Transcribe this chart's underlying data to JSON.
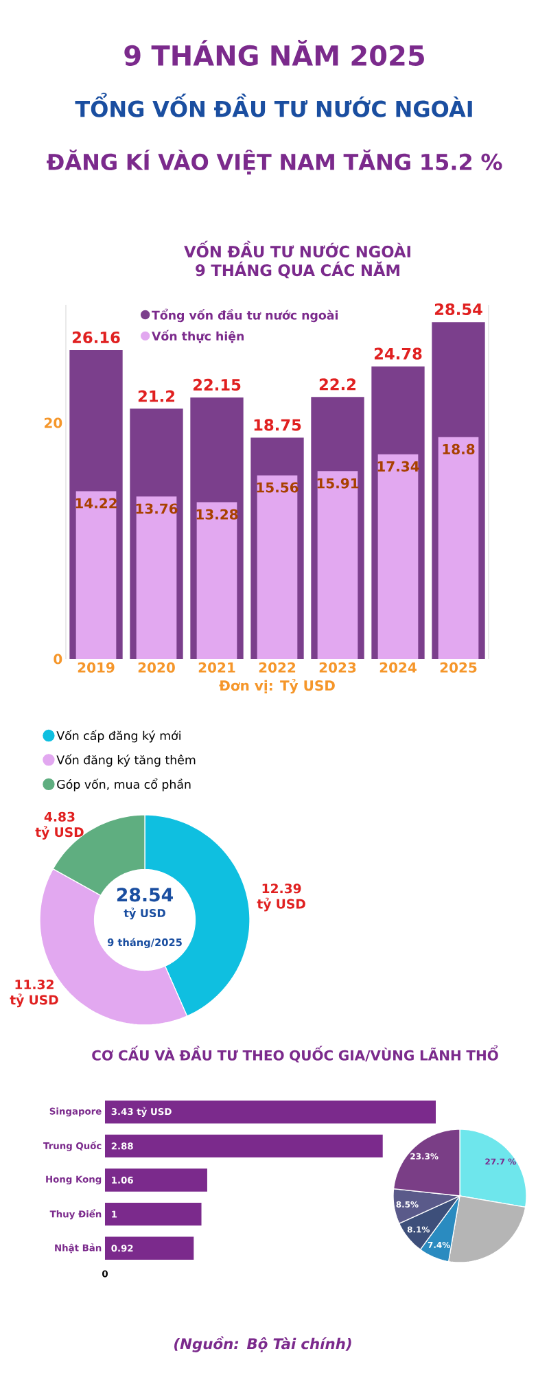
{
  "chart_data": [
    {
      "type": "bar",
      "title": "VỐN ĐẦU TƯ NƯỚC NGOÀI 9 THÁNG QUA CÁC NĂM",
      "annotations": [
        "9 THÁNG NĂM 2025",
        "TỔNG VỐN ĐẦU TƯ NƯỚC NGOÀI",
        "ĐĂNG KÍ VÀO VIỆT NAM TĂNG 15.2 %"
      ],
      "xlabel": "Đơn vị: Tỷ USD",
      "categories": [
        "2019",
        "2020",
        "2021",
        "2022",
        "2023",
        "2024",
        "2025"
      ],
      "series": [
        {
          "name": "Tổng vốn đầu tư nước ngoài",
          "color": "#7b3f8c",
          "values": [
            26.16,
            21.2,
            22.15,
            18.75,
            22.2,
            24.78,
            28.54
          ]
        },
        {
          "name": "Vốn thực hiện",
          "color": "#e2a8f0",
          "values": [
            14.22,
            13.76,
            13.28,
            15.56,
            15.91,
            17.34,
            18.8
          ]
        }
      ],
      "ylim": [
        0,
        30
      ],
      "yticks": [
        0,
        20
      ],
      "legend": "top left",
      "data_labels": true
    },
    {
      "type": "donut",
      "categories": [
        "Vốn cấp đăng ký mới",
        "Vốn đăng ký tăng thêm",
        "Góp vốn, mua cổ phần"
      ],
      "values": [
        12.39,
        11.32,
        4.83
      ],
      "colors": [
        "#0fbfe0",
        "#e2a8f0",
        "#5fae80"
      ],
      "value_labels": [
        "12.39 tỷ USD",
        "11.32 tỷ USD",
        "4.83 tỷ USD"
      ],
      "legend": "top left",
      "annotations": [
        "28.54",
        "tỷ USD",
        "9 tháng/2025"
      ]
    },
    {
      "type": "bar",
      "orientation": "horizontal",
      "title": "CƠ CẤU VÀ ĐẦU TƯ THEO QUỐC GIA/VÙNG LÃNH THỔ",
      "categories": [
        "Singapore",
        "Trung Quốc",
        "Hong Kong",
        "Thuy Điển",
        "Nhật Bản"
      ],
      "values": [
        3.43,
        2.88,
        1.06,
        1,
        0.92
      ],
      "color": "#7b2a8c",
      "value_labels": [
        "3.43 tỷ USD",
        "2.88",
        "1.06",
        "1",
        "0.92"
      ],
      "annotations": [
        "(Nguồn: Bộ Tài chính)",
        "0"
      ]
    },
    {
      "type": "pie",
      "categories": [
        null,
        null,
        null,
        null,
        null,
        null
      ],
      "values": [
        27.7,
        25.0,
        7.4,
        8.1,
        8.5,
        23.3
      ],
      "colors": [
        "#6ee6ec",
        "#b5b5b5",
        "#2a8bc0",
        "#3d4f7a",
        "#5a5a8a",
        "#7a3e86"
      ],
      "value_labels": [
        "27.7 %",
        null,
        "7.4%",
        "8.1%",
        "8.5%",
        "23.3%"
      ]
    }
  ]
}
